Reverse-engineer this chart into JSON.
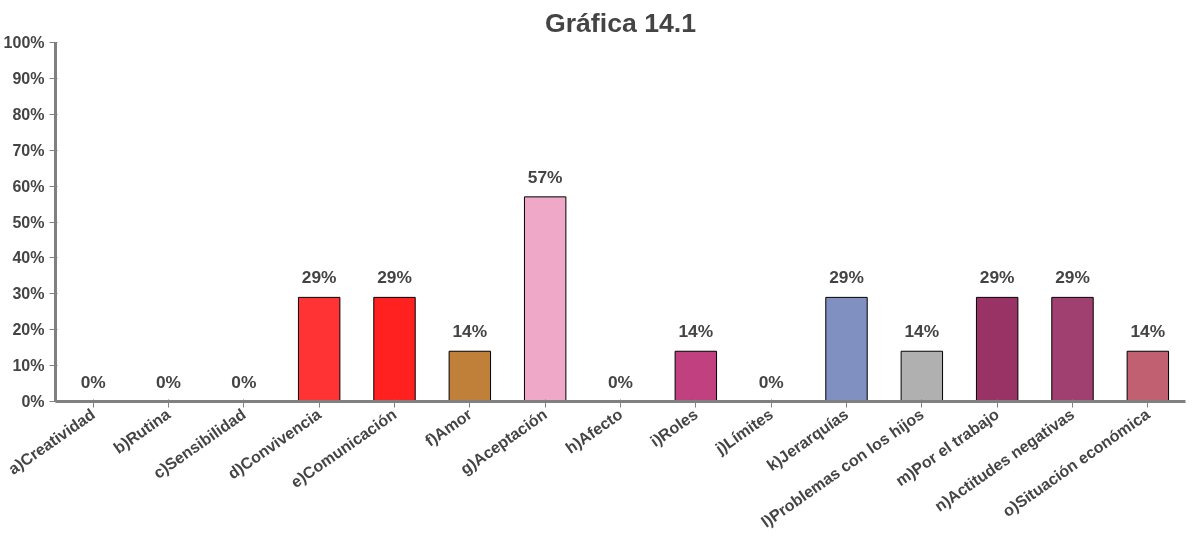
{
  "chart_data": {
    "type": "bar",
    "title": "Gráfica 14.1",
    "categories": [
      "a)Creatividad",
      "b)Rutina",
      "c)Sensibilidad",
      "d)Convivencia",
      "e)Comunicación",
      "f)Amor",
      "g)Aceptación",
      "h)Afecto",
      "i)Roles",
      "j)Límites",
      "k)Jerarquías",
      "l)Problemas con los hijos",
      "m)Por el trabajo",
      "n)Actitudes negativas",
      "o)Situación económica"
    ],
    "values": [
      0,
      0,
      0,
      29,
      29,
      14,
      57,
      0,
      14,
      0,
      29,
      14,
      29,
      29,
      14
    ],
    "colors": [
      null,
      null,
      null,
      "#ff3333",
      "#ff2020",
      "#c0803a",
      "#f0a8c8",
      null,
      "#c04080",
      null,
      "#8090c0",
      "#b0b0b0",
      "#993366",
      "#a04070",
      "#c06070"
    ],
    "value_labels": [
      "0%",
      "0%",
      "0%",
      "29%",
      "29%",
      "14%",
      "57%",
      "0%",
      "14%",
      "0%",
      "29%",
      "14%",
      "29%",
      "29%",
      "14%"
    ],
    "ylim": [
      0,
      100
    ],
    "yticks": [
      {
        "value": 0,
        "label": "0%"
      },
      {
        "value": 10,
        "label": "10%"
      },
      {
        "value": 20,
        "label": "20%"
      },
      {
        "value": 30,
        "label": "30%"
      },
      {
        "value": 40,
        "label": "40%"
      },
      {
        "value": 50,
        "label": "50%"
      },
      {
        "value": 60,
        "label": "60%"
      },
      {
        "value": 70,
        "label": "70%"
      },
      {
        "value": 80,
        "label": "80%"
      },
      {
        "value": 90,
        "label": "90%"
      },
      {
        "value": 100,
        "label": "100%"
      }
    ],
    "grid": false
  }
}
